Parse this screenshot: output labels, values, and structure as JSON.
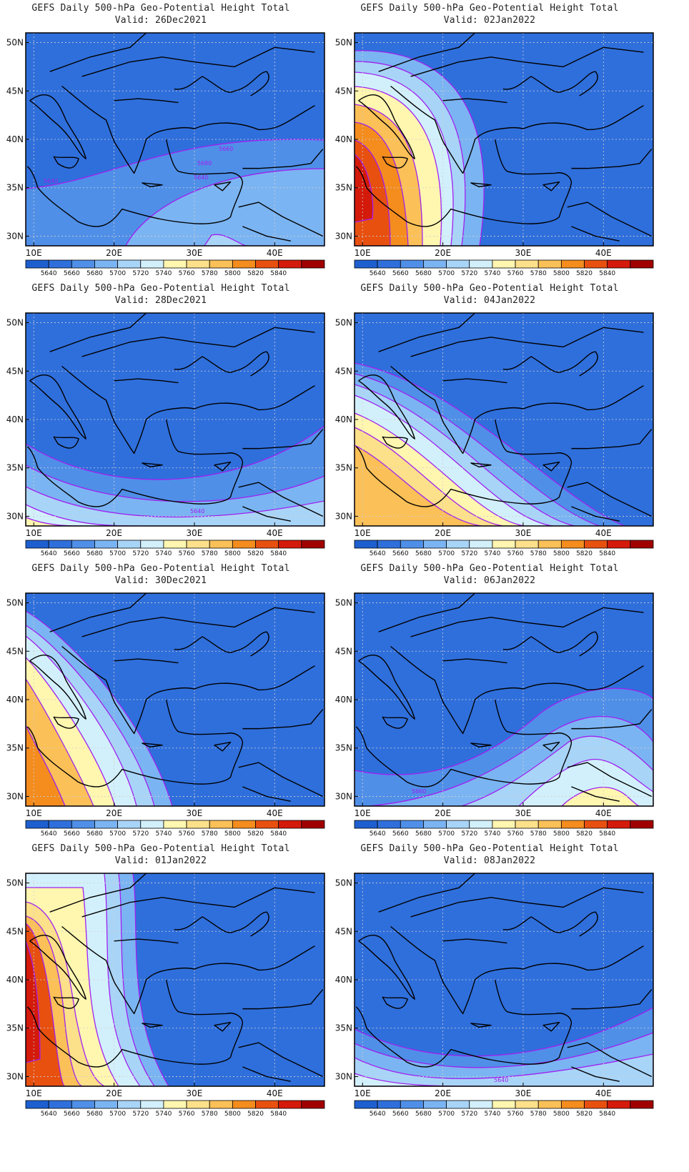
{
  "map_title": "GEFS Daily 500-hPa Geo-Potential Height Total",
  "lat_labels": [
    "50N",
    "45N",
    "40N",
    "35N",
    "30N"
  ],
  "lon_labels": [
    "10E",
    "20E",
    "30E",
    "40E"
  ],
  "colorbar": {
    "labels": [
      "5640",
      "5660",
      "5680",
      "5700",
      "5720",
      "5740",
      "5760",
      "5780",
      "5800",
      "5820",
      "5840"
    ],
    "colors": [
      "#1e5fd0",
      "#2f6fdc",
      "#4f8fe8",
      "#7bb4f2",
      "#a8d4f8",
      "#d2f0fb",
      "#fff6b0",
      "#fde08a",
      "#fbc057",
      "#f48c1e",
      "#e85010",
      "#d41a0a",
      "#a00000"
    ]
  },
  "contour_color": "#a020f0",
  "panels": [
    {
      "valid": "Valid: 26Dec2021",
      "contour_labels": [
        "5640",
        "5660",
        "5680",
        "5640"
      ]
    },
    {
      "valid": "Valid: 02Jan2022",
      "contour_labels": []
    },
    {
      "valid": "Valid: 28Dec2021",
      "contour_labels": [
        "5640"
      ]
    },
    {
      "valid": "Valid: 04Jan2022",
      "contour_labels": []
    },
    {
      "valid": "Valid: 30Dec2021",
      "contour_labels": []
    },
    {
      "valid": "Valid: 06Jan2022",
      "contour_labels": [
        "5660"
      ]
    },
    {
      "valid": "Valid: 01Jan2022",
      "contour_labels": []
    },
    {
      "valid": "Valid: 08Jan2022",
      "contour_labels": [
        "5640"
      ]
    }
  ]
}
